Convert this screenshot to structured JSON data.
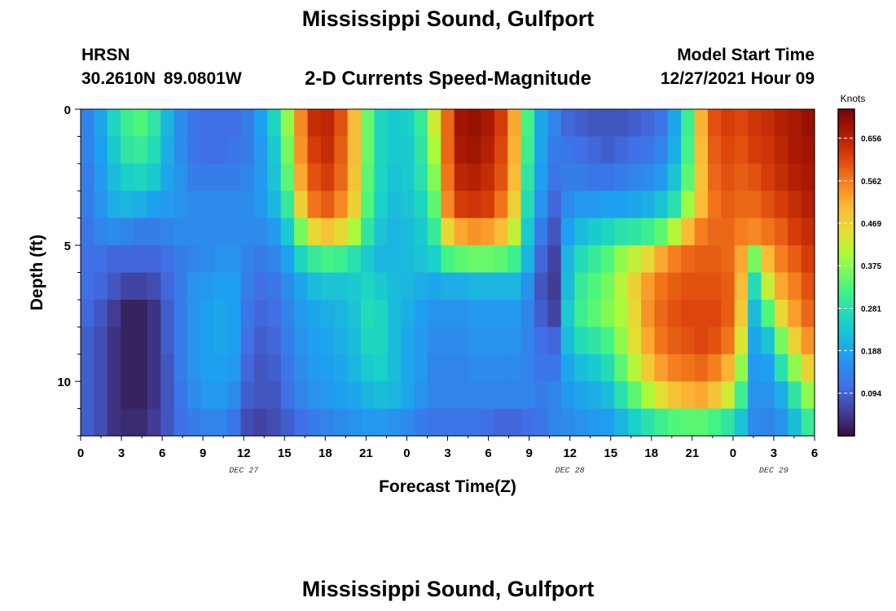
{
  "header": {
    "title": "Mississippi Sound, Gulfport",
    "subtitle": "2-D Currents Speed-Magnitude",
    "station": "HRSN",
    "coords": "30.2610N  89.0801W",
    "start_label": "Model Start Time",
    "start_value": "12/27/2021 Hour 09",
    "repeat_title": "Mississippi Sound, Gulfport"
  },
  "chart_data": {
    "type": "heatmap",
    "title": "2-D Currents Speed-Magnitude",
    "xlabel": "Forecast Time(Z)",
    "ylabel": "Depth (ft)",
    "colorbar_label": "Knots",
    "x_tick_labels": [
      "0",
      "3",
      "6",
      "9",
      "12",
      "15",
      "18",
      "21",
      "0",
      "3",
      "6",
      "9",
      "12",
      "15",
      "18",
      "21",
      "0",
      "3",
      "6"
    ],
    "date_labels": [
      {
        "label": "DEC 27",
        "at_tick": 4
      },
      {
        "label": "DEC 28",
        "at_tick": 12
      },
      {
        "label": "DEC 29",
        "at_tick": 17
      }
    ],
    "y_ticks": [
      0,
      5,
      10
    ],
    "ylim": [
      0,
      12
    ],
    "y_inverted": true,
    "colorbar_ticks": [
      0.094,
      0.188,
      0.281,
      0.375,
      0.469,
      0.562,
      0.656
    ],
    "value_range": [
      0.0,
      0.72
    ],
    "depths": [
      0,
      1,
      2,
      3,
      4,
      5,
      6,
      7,
      8,
      9,
      10,
      11
    ],
    "hours": [
      0,
      1,
      2,
      3,
      4,
      5,
      6,
      7,
      8,
      9,
      10,
      11,
      12,
      13,
      14,
      15,
      16,
      17,
      18,
      19,
      20,
      21,
      22,
      23,
      24,
      25,
      26,
      27,
      28,
      29,
      30,
      31,
      32,
      33,
      34,
      35,
      36,
      37,
      38,
      39,
      40,
      41,
      42,
      43,
      44,
      45,
      46,
      47,
      48,
      49,
      50,
      51,
      52,
      53,
      54
    ],
    "values": [
      [
        0.14,
        0.19,
        0.26,
        0.31,
        0.33,
        0.29,
        0.21,
        0.15,
        0.12,
        0.11,
        0.11,
        0.11,
        0.13,
        0.18,
        0.26,
        0.38,
        0.55,
        0.64,
        0.65,
        0.6,
        0.5,
        0.35,
        0.26,
        0.24,
        0.25,
        0.3,
        0.43,
        0.58,
        0.68,
        0.69,
        0.67,
        0.62,
        0.52,
        0.32,
        0.19,
        0.14,
        0.1,
        0.09,
        0.08,
        0.08,
        0.08,
        0.09,
        0.1,
        0.12,
        0.19,
        0.31,
        0.51,
        0.6,
        0.62,
        0.61,
        0.63,
        0.64,
        0.66,
        0.67,
        0.69
      ],
      [
        0.14,
        0.18,
        0.24,
        0.29,
        0.3,
        0.27,
        0.2,
        0.15,
        0.12,
        0.11,
        0.11,
        0.12,
        0.13,
        0.17,
        0.24,
        0.36,
        0.54,
        0.62,
        0.64,
        0.59,
        0.5,
        0.35,
        0.26,
        0.24,
        0.24,
        0.29,
        0.4,
        0.58,
        0.67,
        0.68,
        0.66,
        0.61,
        0.51,
        0.31,
        0.19,
        0.13,
        0.12,
        0.11,
        0.1,
        0.09,
        0.1,
        0.11,
        0.12,
        0.14,
        0.2,
        0.32,
        0.5,
        0.59,
        0.61,
        0.6,
        0.62,
        0.63,
        0.65,
        0.67,
        0.68
      ],
      [
        0.13,
        0.17,
        0.22,
        0.25,
        0.26,
        0.24,
        0.19,
        0.16,
        0.13,
        0.13,
        0.13,
        0.13,
        0.14,
        0.17,
        0.23,
        0.34,
        0.52,
        0.6,
        0.62,
        0.58,
        0.49,
        0.34,
        0.26,
        0.23,
        0.24,
        0.28,
        0.37,
        0.57,
        0.65,
        0.66,
        0.64,
        0.6,
        0.5,
        0.29,
        0.18,
        0.12,
        0.13,
        0.13,
        0.12,
        0.12,
        0.13,
        0.14,
        0.15,
        0.17,
        0.23,
        0.34,
        0.49,
        0.58,
        0.6,
        0.59,
        0.6,
        0.62,
        0.64,
        0.66,
        0.67
      ],
      [
        0.13,
        0.16,
        0.2,
        0.21,
        0.2,
        0.18,
        0.17,
        0.16,
        0.15,
        0.15,
        0.15,
        0.15,
        0.15,
        0.17,
        0.21,
        0.3,
        0.47,
        0.57,
        0.59,
        0.55,
        0.47,
        0.33,
        0.25,
        0.22,
        0.23,
        0.26,
        0.34,
        0.55,
        0.62,
        0.63,
        0.62,
        0.57,
        0.47,
        0.27,
        0.16,
        0.1,
        0.15,
        0.17,
        0.17,
        0.18,
        0.18,
        0.19,
        0.2,
        0.23,
        0.28,
        0.39,
        0.5,
        0.57,
        0.59,
        0.58,
        0.58,
        0.6,
        0.62,
        0.64,
        0.66
      ],
      [
        0.12,
        0.14,
        0.15,
        0.14,
        0.13,
        0.13,
        0.14,
        0.15,
        0.15,
        0.15,
        0.15,
        0.15,
        0.15,
        0.15,
        0.17,
        0.24,
        0.36,
        0.46,
        0.49,
        0.46,
        0.4,
        0.29,
        0.23,
        0.21,
        0.22,
        0.24,
        0.3,
        0.46,
        0.52,
        0.54,
        0.53,
        0.5,
        0.42,
        0.24,
        0.13,
        0.08,
        0.18,
        0.22,
        0.24,
        0.26,
        0.28,
        0.29,
        0.31,
        0.34,
        0.41,
        0.5,
        0.56,
        0.58,
        0.58,
        0.56,
        0.55,
        0.57,
        0.59,
        0.62,
        0.64
      ],
      [
        0.11,
        0.11,
        0.1,
        0.1,
        0.1,
        0.1,
        0.11,
        0.13,
        0.14,
        0.15,
        0.16,
        0.16,
        0.14,
        0.13,
        0.14,
        0.18,
        0.26,
        0.3,
        0.32,
        0.31,
        0.28,
        0.24,
        0.21,
        0.21,
        0.22,
        0.23,
        0.25,
        0.32,
        0.34,
        0.35,
        0.35,
        0.34,
        0.31,
        0.21,
        0.1,
        0.06,
        0.21,
        0.27,
        0.3,
        0.33,
        0.38,
        0.42,
        0.46,
        0.52,
        0.56,
        0.58,
        0.59,
        0.59,
        0.58,
        0.52,
        0.36,
        0.5,
        0.56,
        0.59,
        0.62
      ],
      [
        0.11,
        0.1,
        0.08,
        0.06,
        0.06,
        0.07,
        0.1,
        0.13,
        0.16,
        0.17,
        0.18,
        0.18,
        0.13,
        0.11,
        0.12,
        0.15,
        0.19,
        0.22,
        0.23,
        0.23,
        0.24,
        0.26,
        0.24,
        0.22,
        0.21,
        0.2,
        0.19,
        0.2,
        0.2,
        0.21,
        0.21,
        0.21,
        0.21,
        0.16,
        0.08,
        0.05,
        0.22,
        0.3,
        0.33,
        0.36,
        0.41,
        0.47,
        0.53,
        0.57,
        0.59,
        0.6,
        0.6,
        0.6,
        0.59,
        0.5,
        0.27,
        0.42,
        0.52,
        0.56,
        0.6
      ],
      [
        0.1,
        0.08,
        0.05,
        0.02,
        0.02,
        0.04,
        0.09,
        0.13,
        0.16,
        0.18,
        0.19,
        0.18,
        0.12,
        0.1,
        0.11,
        0.14,
        0.17,
        0.19,
        0.2,
        0.21,
        0.23,
        0.27,
        0.26,
        0.22,
        0.2,
        0.18,
        0.16,
        0.16,
        0.16,
        0.17,
        0.17,
        0.17,
        0.17,
        0.14,
        0.09,
        0.06,
        0.24,
        0.31,
        0.34,
        0.37,
        0.4,
        0.46,
        0.54,
        0.58,
        0.6,
        0.61,
        0.61,
        0.61,
        0.59,
        0.48,
        0.22,
        0.33,
        0.46,
        0.53,
        0.58
      ],
      [
        0.09,
        0.07,
        0.04,
        0.02,
        0.02,
        0.04,
        0.09,
        0.13,
        0.16,
        0.18,
        0.19,
        0.18,
        0.11,
        0.09,
        0.1,
        0.13,
        0.16,
        0.18,
        0.19,
        0.2,
        0.22,
        0.26,
        0.26,
        0.22,
        0.19,
        0.17,
        0.15,
        0.15,
        0.15,
        0.16,
        0.16,
        0.16,
        0.16,
        0.14,
        0.11,
        0.1,
        0.22,
        0.27,
        0.29,
        0.32,
        0.38,
        0.45,
        0.52,
        0.57,
        0.59,
        0.6,
        0.61,
        0.6,
        0.57,
        0.44,
        0.19,
        0.23,
        0.36,
        0.47,
        0.54
      ],
      [
        0.09,
        0.07,
        0.04,
        0.02,
        0.02,
        0.04,
        0.08,
        0.13,
        0.16,
        0.18,
        0.18,
        0.17,
        0.1,
        0.08,
        0.09,
        0.12,
        0.15,
        0.17,
        0.18,
        0.19,
        0.21,
        0.24,
        0.25,
        0.22,
        0.19,
        0.17,
        0.14,
        0.14,
        0.14,
        0.15,
        0.15,
        0.15,
        0.15,
        0.14,
        0.12,
        0.12,
        0.19,
        0.22,
        0.24,
        0.27,
        0.34,
        0.41,
        0.48,
        0.53,
        0.56,
        0.57,
        0.58,
        0.56,
        0.51,
        0.38,
        0.17,
        0.18,
        0.28,
        0.38,
        0.47
      ],
      [
        0.09,
        0.07,
        0.04,
        0.02,
        0.02,
        0.04,
        0.08,
        0.12,
        0.15,
        0.17,
        0.17,
        0.15,
        0.09,
        0.08,
        0.08,
        0.11,
        0.14,
        0.16,
        0.17,
        0.18,
        0.19,
        0.21,
        0.22,
        0.21,
        0.19,
        0.16,
        0.14,
        0.14,
        0.14,
        0.14,
        0.14,
        0.14,
        0.14,
        0.14,
        0.13,
        0.14,
        0.17,
        0.19,
        0.2,
        0.22,
        0.28,
        0.34,
        0.4,
        0.45,
        0.49,
        0.51,
        0.52,
        0.49,
        0.43,
        0.31,
        0.16,
        0.16,
        0.2,
        0.29,
        0.38
      ],
      [
        0.09,
        0.07,
        0.04,
        0.03,
        0.03,
        0.05,
        0.08,
        0.11,
        0.13,
        0.14,
        0.14,
        0.12,
        0.07,
        0.06,
        0.07,
        0.09,
        0.11,
        0.13,
        0.14,
        0.15,
        0.16,
        0.17,
        0.17,
        0.16,
        0.15,
        0.13,
        0.12,
        0.12,
        0.12,
        0.12,
        0.11,
        0.1,
        0.1,
        0.11,
        0.12,
        0.14,
        0.15,
        0.16,
        0.17,
        0.18,
        0.21,
        0.25,
        0.28,
        0.31,
        0.33,
        0.34,
        0.34,
        0.32,
        0.29,
        0.23,
        0.15,
        0.14,
        0.16,
        0.22,
        0.3
      ]
    ]
  }
}
